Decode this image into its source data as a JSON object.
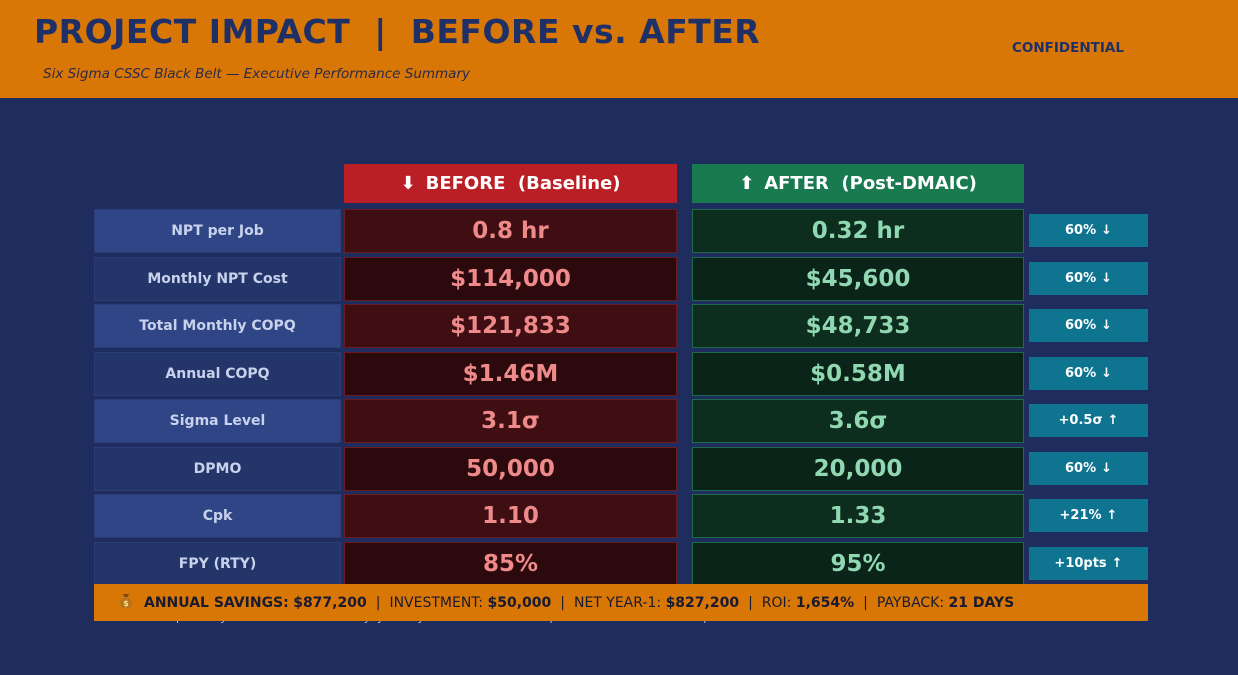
{
  "header": {
    "title": "PROJECT IMPACT  |  BEFORE vs. AFTER",
    "subtitle": "Six Sigma CSSC Black Belt — Executive Performance Summary",
    "confidential": "CONFIDENTIAL"
  },
  "columns": {
    "before": {
      "arrow": "⬇",
      "label": "BEFORE  (Baseline)",
      "color": "#b91f24"
    },
    "after": {
      "arrow": "⬆",
      "label": "AFTER  (Post-DMAIC)",
      "color": "#187a4e"
    }
  },
  "rows": [
    {
      "metric": "NPT per Job",
      "before": "0.8 hr",
      "after": "0.32 hr",
      "change": "60%",
      "change_arrow": "↓"
    },
    {
      "metric": "Monthly NPT Cost",
      "before": "$114,000",
      "after": "$45,600",
      "change": "60%",
      "change_arrow": "↓"
    },
    {
      "metric": "Total Monthly COPQ",
      "before": "$121,833",
      "after": "$48,733",
      "change": "60%",
      "change_arrow": "↓"
    },
    {
      "metric": "Annual COPQ",
      "before": "$1.46M",
      "after": "$0.58M",
      "change": "60%",
      "change_arrow": "↓"
    },
    {
      "metric": "Sigma Level",
      "before": "3.1σ",
      "after": "3.6σ",
      "change": "+0.5σ",
      "change_arrow": "↑"
    },
    {
      "metric": "DPMO",
      "before": "50,000",
      "after": "20,000",
      "change": "60%",
      "change_arrow": "↓"
    },
    {
      "metric": "Cpk",
      "before": "1.10",
      "after": "1.33",
      "change": "+21%",
      "change_arrow": "↑"
    },
    {
      "metric": "FPY (RTY)",
      "before": "85%",
      "after": "95%",
      "change": "+10pts",
      "change_arrow": "↑"
    }
  ],
  "footnote": "All values independently verified · Baseline: 2-week Jolyfa study · Post-DMAIC: 4-week implementation · 6-week control phase confirmation",
  "summary": {
    "icon": "money-bag-icon",
    "savings_label": "ANNUAL SAVINGS:",
    "savings_value": "$877,200",
    "investment_label": "INVESTMENT:",
    "investment_value": "$50,000",
    "net_label": "NET YEAR-1:",
    "net_value": "$827,200",
    "roi_label": "ROI:",
    "roi_value": "1,654%",
    "payback_label": "PAYBACK:",
    "payback_value": "21 DAYS"
  },
  "colors": {
    "background": "#1e2d5e",
    "header": "#d97706",
    "badge": "#0e7490"
  }
}
